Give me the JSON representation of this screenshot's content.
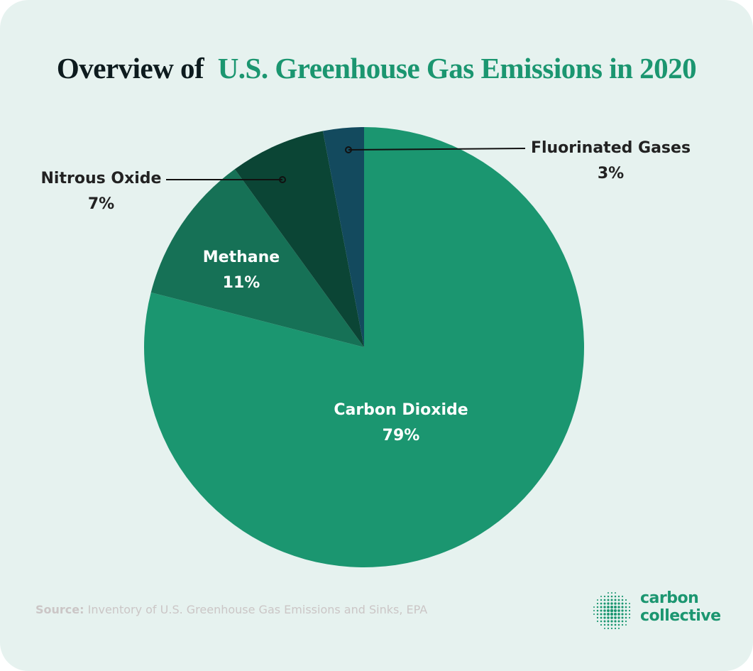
{
  "title": {
    "prefix": "Overview of",
    "highlight": "U.S. Greenhouse Gas Emissions in 2020"
  },
  "chart_data": {
    "type": "pie",
    "title": "Overview of U.S. Greenhouse Gas Emissions in 2020",
    "start": "12 o'clock, clockwise",
    "slices": [
      {
        "label": "Carbon Dioxide",
        "value": 79,
        "display": "79%",
        "color": "#1b9670"
      },
      {
        "label": "Methane",
        "value": 11,
        "display": "11%",
        "color": "#167156"
      },
      {
        "label": "Nitrous Oxide",
        "value": 7,
        "display": "7%",
        "color": "#0b4535"
      },
      {
        "label": "Fluorinated Gases",
        "value": 3,
        "display": "3%",
        "color": "#134a5e"
      }
    ]
  },
  "source": {
    "label": "Source:",
    "text": "Inventory of U.S. Greenhouse Gas Emissions and Sinks, EPA"
  },
  "logo": {
    "line1": "carbon",
    "line2": "collective",
    "color": "#1b9670"
  },
  "background": "#e6f2ef"
}
